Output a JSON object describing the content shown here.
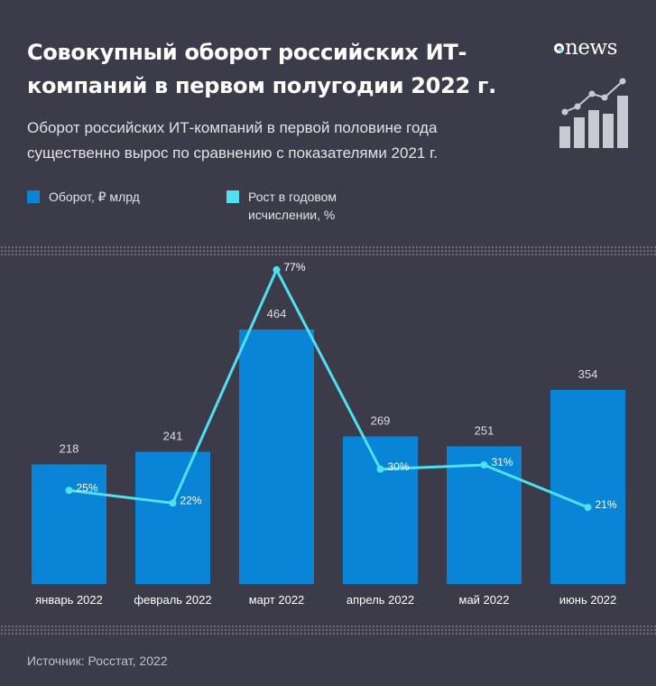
{
  "header": {
    "title": "Совокупный оборот российских ИТ-компаний в первом полугодии 2022 г.",
    "subtitle": "Оборот российских ИТ-компаний в первой половине года существенно вырос по сравнению с показателями 2021 г.",
    "logo_text": "news"
  },
  "legend": {
    "bar_label": "Оборот, ₽ млрд",
    "line_label": "Рост в годовом исчислении, %"
  },
  "colors": {
    "background": "#3c3b4a",
    "bar": "#0a84d6",
    "line": "#4fe0f2"
  },
  "chart_data": {
    "type": "bar",
    "categories": [
      "январь 2022",
      "февраль 2022",
      "март 2022",
      "апрель 2022",
      "май 2022",
      "июнь 2022"
    ],
    "series": [
      {
        "name": "Оборот, ₽ млрд",
        "type": "bar",
        "values": [
          218,
          241,
          464,
          269,
          251,
          354
        ]
      },
      {
        "name": "Рост в годовом исчислении, %",
        "type": "line",
        "values": [
          25,
          22,
          77,
          30,
          31,
          21
        ],
        "labels": [
          "25%",
          "22%",
          "77%",
          "30%",
          "31%",
          "21%"
        ]
      }
    ],
    "bar_labels": [
      "218",
      "241",
      "464",
      "269",
      "251",
      "354"
    ],
    "grid": false
  },
  "footer": {
    "source": "Источник: Росстат, 2022"
  }
}
